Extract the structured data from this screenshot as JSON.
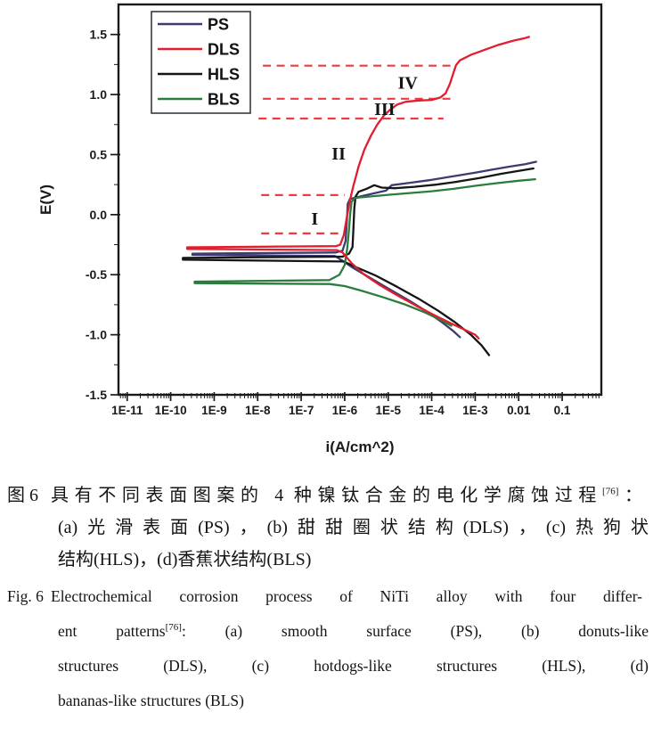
{
  "chart_data": {
    "type": "line",
    "title": "",
    "xlabel": "i(A/cm^2)",
    "ylabel": "E(V)",
    "x_scale": "log10",
    "x_range_log10": [
      -11.2,
      -0.1
    ],
    "y_range": [
      -1.5,
      1.75
    ],
    "grid": false,
    "legend_position": "top-left-inside",
    "x_ticks": [
      {
        "log10": -11,
        "label": "1E-11"
      },
      {
        "log10": -10,
        "label": "1E-10"
      },
      {
        "log10": -9,
        "label": "1E-9"
      },
      {
        "log10": -8,
        "label": "1E-8"
      },
      {
        "log10": -7,
        "label": "1E-7"
      },
      {
        "log10": -6,
        "label": "1E-6"
      },
      {
        "log10": -5,
        "label": "1E-5"
      },
      {
        "log10": -4,
        "label": "1E-4"
      },
      {
        "log10": -3,
        "label": "1E-3"
      },
      {
        "log10": -2,
        "label": "0.01"
      },
      {
        "log10": -1,
        "label": "0.1"
      }
    ],
    "y_ticks": [
      {
        "value": 1.5,
        "label": "1.5"
      },
      {
        "value": 1.0,
        "label": "1.0"
      },
      {
        "value": 0.5,
        "label": "0.5"
      },
      {
        "value": 0.0,
        "label": "0.0"
      },
      {
        "value": -0.5,
        "label": "-0.5"
      },
      {
        "value": -1.0,
        "label": "-1.0"
      },
      {
        "value": -1.5,
        "label": "-1.5"
      }
    ],
    "y_minor_step": 0.25,
    "legend": [
      {
        "name": "PS",
        "color": "#3c3b72"
      },
      {
        "name": "DLS",
        "color": "#e11d2e"
      },
      {
        "name": "HLS",
        "color": "#151515"
      },
      {
        "name": "BLS",
        "color": "#2b7d3e"
      }
    ],
    "guide_lines": {
      "color": "#ec3b44",
      "style": "dashed",
      "items": [
        {
          "E": 1.24,
          "log10_x": [
            -7.88,
            -3.43
          ]
        },
        {
          "E": 0.965,
          "log10_x": [
            -7.88,
            -3.49
          ]
        },
        {
          "E": 0.8,
          "log10_x": [
            -7.98,
            -3.73
          ]
        },
        {
          "E": 0.163,
          "log10_x": [
            -7.92,
            -6.0
          ]
        },
        {
          "E": -0.156,
          "log10_x": [
            -7.92,
            -6.0
          ]
        }
      ]
    },
    "region_labels": [
      {
        "text": "I",
        "log10_x": -6.69,
        "E": -0.03
      },
      {
        "text": "II",
        "log10_x": -6.14,
        "E": 0.51
      },
      {
        "text": "III",
        "log10_x": -5.08,
        "E": 0.88
      },
      {
        "text": "IV",
        "log10_x": -4.55,
        "E": 1.1
      }
    ],
    "series": [
      {
        "name": "PS",
        "color": "#3c3b72",
        "ecorr": -0.33,
        "points": [
          [
            -3.35,
            -1.02
          ],
          [
            -3.5,
            -0.97
          ],
          [
            -3.75,
            -0.9
          ],
          [
            -4.1,
            -0.81
          ],
          [
            -4.5,
            -0.72
          ],
          [
            -4.95,
            -0.625
          ],
          [
            -5.4,
            -0.53
          ],
          [
            -5.8,
            -0.445
          ],
          [
            -6.05,
            -0.385
          ],
          [
            -6.22,
            -0.345
          ],
          [
            -9.5,
            -0.335
          ],
          [
            -9.5,
            -0.325
          ],
          [
            -6.2,
            -0.315
          ],
          [
            -6.05,
            -0.3
          ],
          [
            -5.98,
            -0.22
          ],
          [
            -5.95,
            -0.05
          ],
          [
            -5.93,
            0.09
          ],
          [
            -5.88,
            0.13
          ],
          [
            -5.6,
            0.155
          ],
          [
            -5.3,
            0.18
          ],
          [
            -5.05,
            0.2
          ],
          [
            -4.92,
            0.245
          ],
          [
            -4.5,
            0.265
          ],
          [
            -4.0,
            0.29
          ],
          [
            -3.5,
            0.32
          ],
          [
            -3.0,
            0.35
          ],
          [
            -2.6,
            0.375
          ],
          [
            -2.2,
            0.4
          ],
          [
            -1.85,
            0.42
          ],
          [
            -1.6,
            0.44
          ]
        ]
      },
      {
        "name": "HLS",
        "color": "#151515",
        "ecorr": -0.37,
        "points": [
          [
            -2.68,
            -1.17
          ],
          [
            -2.85,
            -1.09
          ],
          [
            -3.1,
            -1.0
          ],
          [
            -3.45,
            -0.9
          ],
          [
            -3.85,
            -0.8
          ],
          [
            -4.3,
            -0.7
          ],
          [
            -4.8,
            -0.6
          ],
          [
            -5.3,
            -0.505
          ],
          [
            -5.75,
            -0.435
          ],
          [
            -6.02,
            -0.39
          ],
          [
            -9.72,
            -0.375
          ],
          [
            -9.72,
            -0.36
          ],
          [
            -6.05,
            -0.35
          ],
          [
            -5.9,
            -0.325
          ],
          [
            -5.82,
            -0.27
          ],
          [
            -5.8,
            -0.12
          ],
          [
            -5.78,
            0.05
          ],
          [
            -5.75,
            0.15
          ],
          [
            -5.68,
            0.19
          ],
          [
            -5.5,
            0.215
          ],
          [
            -5.32,
            0.245
          ],
          [
            -5.15,
            0.225
          ],
          [
            -4.85,
            0.22
          ],
          [
            -4.4,
            0.232
          ],
          [
            -3.9,
            0.25
          ],
          [
            -3.4,
            0.275
          ],
          [
            -2.9,
            0.305
          ],
          [
            -2.4,
            0.34
          ],
          [
            -2.0,
            0.365
          ],
          [
            -1.66,
            0.385
          ]
        ]
      },
      {
        "name": "BLS",
        "color": "#2b7d3e",
        "ecorr": -0.56,
        "points": [
          [
            -3.55,
            -0.925
          ],
          [
            -3.8,
            -0.875
          ],
          [
            -4.15,
            -0.815
          ],
          [
            -4.6,
            -0.75
          ],
          [
            -5.1,
            -0.69
          ],
          [
            -5.6,
            -0.635
          ],
          [
            -6.0,
            -0.595
          ],
          [
            -6.35,
            -0.578
          ],
          [
            -9.45,
            -0.57
          ],
          [
            -9.45,
            -0.558
          ],
          [
            -6.35,
            -0.545
          ],
          [
            -6.12,
            -0.5
          ],
          [
            -6.0,
            -0.42
          ],
          [
            -5.94,
            -0.28
          ],
          [
            -5.9,
            -0.12
          ],
          [
            -5.87,
            0.02
          ],
          [
            -5.84,
            0.11
          ],
          [
            -5.75,
            0.14
          ],
          [
            -5.45,
            0.15
          ],
          [
            -5.0,
            0.165
          ],
          [
            -4.5,
            0.18
          ],
          [
            -4.0,
            0.195
          ],
          [
            -3.5,
            0.215
          ],
          [
            -3.0,
            0.24
          ],
          [
            -2.5,
            0.262
          ],
          [
            -2.0,
            0.282
          ],
          [
            -1.62,
            0.295
          ]
        ]
      },
      {
        "name": "DLS",
        "color": "#e11d2e",
        "ecorr": -0.28,
        "points": [
          [
            -2.92,
            -1.03
          ],
          [
            -3.0,
            -1.0
          ],
          [
            -3.2,
            -0.965
          ],
          [
            -3.5,
            -0.915
          ],
          [
            -3.9,
            -0.845
          ],
          [
            -4.35,
            -0.76
          ],
          [
            -4.8,
            -0.67
          ],
          [
            -5.2,
            -0.585
          ],
          [
            -5.55,
            -0.5
          ],
          [
            -5.85,
            -0.4
          ],
          [
            -6.05,
            -0.315
          ],
          [
            -6.18,
            -0.295
          ],
          [
            -9.62,
            -0.285
          ],
          [
            -9.62,
            -0.272
          ],
          [
            -6.2,
            -0.262
          ],
          [
            -6.1,
            -0.25
          ],
          [
            -6.02,
            -0.17
          ],
          [
            -5.95,
            -0.02
          ],
          [
            -5.88,
            0.12
          ],
          [
            -5.8,
            0.24
          ],
          [
            -5.68,
            0.4
          ],
          [
            -5.55,
            0.54
          ],
          [
            -5.4,
            0.655
          ],
          [
            -5.25,
            0.75
          ],
          [
            -5.1,
            0.825
          ],
          [
            -4.95,
            0.875
          ],
          [
            -4.8,
            0.915
          ],
          [
            -4.6,
            0.94
          ],
          [
            -4.3,
            0.95
          ],
          [
            -4.0,
            0.955
          ],
          [
            -3.8,
            0.975
          ],
          [
            -3.68,
            1.01
          ],
          [
            -3.58,
            1.09
          ],
          [
            -3.5,
            1.18
          ],
          [
            -3.44,
            1.245
          ],
          [
            -3.35,
            1.285
          ],
          [
            -3.1,
            1.33
          ],
          [
            -2.8,
            1.37
          ],
          [
            -2.45,
            1.415
          ],
          [
            -2.1,
            1.45
          ],
          [
            -1.85,
            1.47
          ],
          [
            -1.76,
            1.48
          ]
        ]
      }
    ]
  },
  "captions": {
    "zh": {
      "label": "图 6",
      "line1_pre": "具有不同表面图案的 4 种镍钛合金的电化学腐蚀过程",
      "line1_sup": "[76]",
      "line1_post": "：",
      "line2": "(a)光滑表面(PS)，(b)甜甜圈状结构(DLS)，(c)热狗状",
      "line3": "结构(HLS)，(d)香蕉状结构(BLS)"
    },
    "en": {
      "label": "Fig. 6",
      "line1": "Electrochemical corrosion process of NiTi alloy with four differ-",
      "line2_pre": "ent patterns",
      "line2_sup": "[76]",
      "line2_post": ": (a) smooth surface (PS), (b) donuts-like",
      "line3": "structures (DLS), (c) hotdogs-like structures (HLS), (d)",
      "line4": "bananas-like structures (BLS)"
    }
  }
}
